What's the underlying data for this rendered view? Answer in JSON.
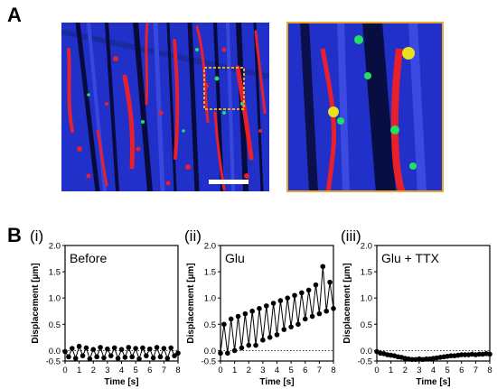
{
  "panel_a": {
    "letter": "A"
  },
  "panel_b": {
    "letter": "B"
  },
  "colors": {
    "background_blue": "#2030c8",
    "fiber_blue": "#1a2a9e",
    "dark_gap": "#06082a",
    "red_stain": "#e8202c",
    "green_stain": "#20e060",
    "yellow_stain": "#e8e020",
    "inset_border": "#e8a830",
    "scale_bar": "#ffffff"
  },
  "chart_data": [
    {
      "type": "scatter",
      "panel_label": "(i)",
      "title": "Before",
      "xlabel": "Time [s]",
      "ylabel": "Displacement [µm]",
      "xlim": [
        0,
        8
      ],
      "ylim": [
        -0.2,
        2.0
      ],
      "xticks": [
        "0",
        "1",
        "2",
        "3",
        "4",
        "5",
        "6",
        "7",
        "8"
      ],
      "yticks": [
        "-0.5",
        "0.0",
        "0.5",
        "1.0",
        "1.5",
        "2.0"
      ],
      "zero_line": "dotted",
      "series": [
        {
          "x": [
            0.0,
            0.25,
            0.5,
            0.75,
            1.0,
            1.25,
            1.5,
            1.75,
            2.0,
            2.25,
            2.5,
            2.75,
            3.0,
            3.25,
            3.5,
            3.75,
            4.0,
            4.25,
            4.5,
            4.75,
            5.0,
            5.25,
            5.5,
            5.75,
            6.0,
            6.25,
            6.5,
            6.75,
            7.0,
            7.25,
            7.5,
            7.75,
            8.0
          ],
          "y": [
            -0.02,
            -0.12,
            0.04,
            -0.15,
            0.08,
            -0.1,
            0.05,
            -0.16,
            0.02,
            -0.12,
            0.06,
            -0.14,
            0.03,
            -0.1,
            0.05,
            -0.15,
            0.02,
            -0.13,
            0.06,
            -0.12,
            0.04,
            -0.16,
            0.05,
            -0.1,
            0.03,
            -0.14,
            0.06,
            -0.12,
            0.04,
            -0.15,
            0.05,
            -0.1,
            -0.05
          ]
        }
      ]
    },
    {
      "type": "scatter",
      "panel_label": "(ii)",
      "title": "Glu",
      "xlabel": "Time [s]",
      "ylabel": "Displacement [µm]",
      "xlim": [
        0,
        8
      ],
      "ylim": [
        -0.2,
        2.0
      ],
      "xticks": [
        "0",
        "1",
        "2",
        "3",
        "4",
        "5",
        "6",
        "7",
        "8"
      ],
      "yticks": [
        "-0.5",
        "0.0",
        "0.5",
        "1.0",
        "1.5",
        "2.0"
      ],
      "zero_line": "dotted",
      "series": [
        {
          "x": [
            0.0,
            0.25,
            0.5,
            0.75,
            1.0,
            1.25,
            1.5,
            1.75,
            2.0,
            2.25,
            2.5,
            2.75,
            3.0,
            3.25,
            3.5,
            3.75,
            4.0,
            4.25,
            4.5,
            4.75,
            5.0,
            5.25,
            5.5,
            5.75,
            6.0,
            6.25,
            6.5,
            6.75,
            7.0,
            7.25,
            7.5,
            7.75,
            8.0
          ],
          "y": [
            -0.05,
            0.5,
            -0.05,
            0.6,
            0.0,
            0.65,
            0.05,
            0.7,
            0.1,
            0.75,
            0.1,
            0.8,
            0.2,
            0.85,
            0.25,
            0.9,
            0.3,
            0.95,
            0.4,
            1.0,
            0.45,
            1.05,
            0.5,
            1.1,
            0.6,
            1.15,
            0.65,
            1.25,
            0.7,
            1.6,
            0.75,
            1.3,
            0.8
          ]
        }
      ]
    },
    {
      "type": "scatter",
      "panel_label": "(iii)",
      "title": "Glu + TTX",
      "xlabel": "Time [s]",
      "ylabel": "Displacement [µm]",
      "xlim": [
        0,
        8
      ],
      "ylim": [
        -0.2,
        2.0
      ],
      "xticks": [
        "0",
        "1",
        "2",
        "3",
        "4",
        "5",
        "6",
        "7",
        "8"
      ],
      "yticks": [
        "-0.5",
        "0.0",
        "0.5",
        "1.0",
        "1.5",
        "2.0"
      ],
      "zero_line": "dotted",
      "series": [
        {
          "x": [
            0.0,
            0.25,
            0.5,
            0.75,
            1.0,
            1.25,
            1.5,
            1.75,
            2.0,
            2.25,
            2.5,
            2.75,
            3.0,
            3.25,
            3.5,
            3.75,
            4.0,
            4.25,
            4.5,
            4.75,
            5.0,
            5.25,
            5.5,
            5.75,
            6.0,
            6.25,
            6.5,
            6.75,
            7.0,
            7.25,
            7.5,
            7.75,
            8.0
          ],
          "y": [
            -0.02,
            -0.05,
            -0.06,
            -0.08,
            -0.09,
            -0.1,
            -0.12,
            -0.13,
            -0.15,
            -0.16,
            -0.17,
            -0.17,
            -0.16,
            -0.17,
            -0.16,
            -0.16,
            -0.15,
            -0.14,
            -0.13,
            -0.12,
            -0.11,
            -0.1,
            -0.1,
            -0.09,
            -0.08,
            -0.08,
            -0.08,
            -0.07,
            -0.08,
            -0.07,
            -0.07,
            -0.06,
            -0.07
          ]
        }
      ]
    }
  ]
}
